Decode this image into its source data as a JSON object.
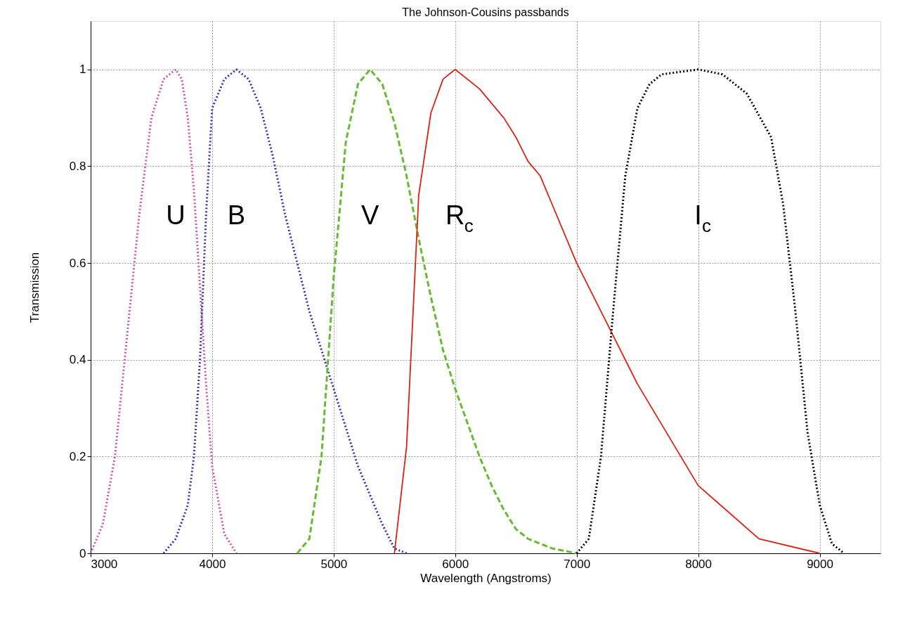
{
  "chart_data": {
    "type": "line",
    "title": "The Johnson-Cousins passbands",
    "xlabel": "Wavelength (Angstroms)",
    "ylabel": "Transmission",
    "xlim": [
      3000,
      9500
    ],
    "xticks": [
      3000,
      4000,
      5000,
      6000,
      7000,
      8000,
      9000
    ],
    "ylim": [
      0,
      1.1
    ],
    "yticks": [
      0,
      0.2,
      0.4,
      0.6,
      0.8,
      1
    ],
    "grid": true,
    "legend": false,
    "marker": "none",
    "series": [
      {
        "name": "U",
        "color": "#cc55aa",
        "line_style": "dotted",
        "x": [
          3000,
          3100,
          3200,
          3300,
          3400,
          3500,
          3600,
          3700,
          3750,
          3800,
          3850,
          3900,
          3950,
          4000,
          4100,
          4200
        ],
        "values": [
          0,
          0.06,
          0.2,
          0.45,
          0.7,
          0.9,
          0.98,
          1.0,
          0.98,
          0.9,
          0.75,
          0.55,
          0.35,
          0.18,
          0.04,
          0
        ]
      },
      {
        "name": "B",
        "color": "#3333aa",
        "line_style": "dotted",
        "x": [
          3600,
          3700,
          3800,
          3850,
          3900,
          3950,
          4000,
          4100,
          4200,
          4300,
          4400,
          4500,
          4600,
          4700,
          4800,
          4900,
          5000,
          5100,
          5200,
          5300,
          5400,
          5500,
          5600
        ],
        "values": [
          0,
          0.03,
          0.1,
          0.2,
          0.4,
          0.7,
          0.92,
          0.98,
          1.0,
          0.98,
          0.92,
          0.82,
          0.7,
          0.6,
          0.5,
          0.42,
          0.34,
          0.26,
          0.18,
          0.12,
          0.06,
          0.01,
          0
        ]
      },
      {
        "name": "V",
        "color": "#66bb33",
        "line_style": "dashed",
        "x": [
          4700,
          4800,
          4900,
          5000,
          5100,
          5200,
          5300,
          5400,
          5500,
          5600,
          5700,
          5800,
          5900,
          6000,
          6100,
          6200,
          6300,
          6400,
          6500,
          6600,
          6700,
          6800,
          7000
        ],
        "values": [
          0,
          0.03,
          0.2,
          0.57,
          0.85,
          0.97,
          1.0,
          0.97,
          0.89,
          0.78,
          0.65,
          0.53,
          0.42,
          0.34,
          0.27,
          0.2,
          0.14,
          0.09,
          0.05,
          0.03,
          0.02,
          0.01,
          0
        ]
      },
      {
        "name": "R$_{c}$",
        "color": "#dd2211",
        "line_style": "solid",
        "x": [
          5500,
          5600,
          5700,
          5800,
          5900,
          6000,
          6200,
          6400,
          6500,
          6600,
          6700,
          6800,
          6900,
          7000,
          7200,
          7400,
          7500,
          8000,
          8500,
          9000
        ],
        "values": [
          0,
          0.22,
          0.74,
          0.91,
          0.98,
          1.0,
          0.96,
          0.9,
          0.86,
          0.81,
          0.78,
          0.72,
          0.66,
          0.6,
          0.5,
          0.4,
          0.35,
          0.14,
          0.03,
          0
        ]
      },
      {
        "name": "I$_{c}$",
        "color": "#000000",
        "line_style": "dotted",
        "x": [
          7000,
          7100,
          7200,
          7300,
          7400,
          7500,
          7600,
          7700,
          8000,
          8200,
          8400,
          8600,
          8700,
          8800,
          8900,
          9000,
          9100,
          9200
        ],
        "values": [
          0,
          0.03,
          0.2,
          0.5,
          0.78,
          0.92,
          0.97,
          0.99,
          1.0,
          0.99,
          0.95,
          0.86,
          0.72,
          0.5,
          0.25,
          0.1,
          0.02,
          0
        ]
      }
    ]
  }
}
